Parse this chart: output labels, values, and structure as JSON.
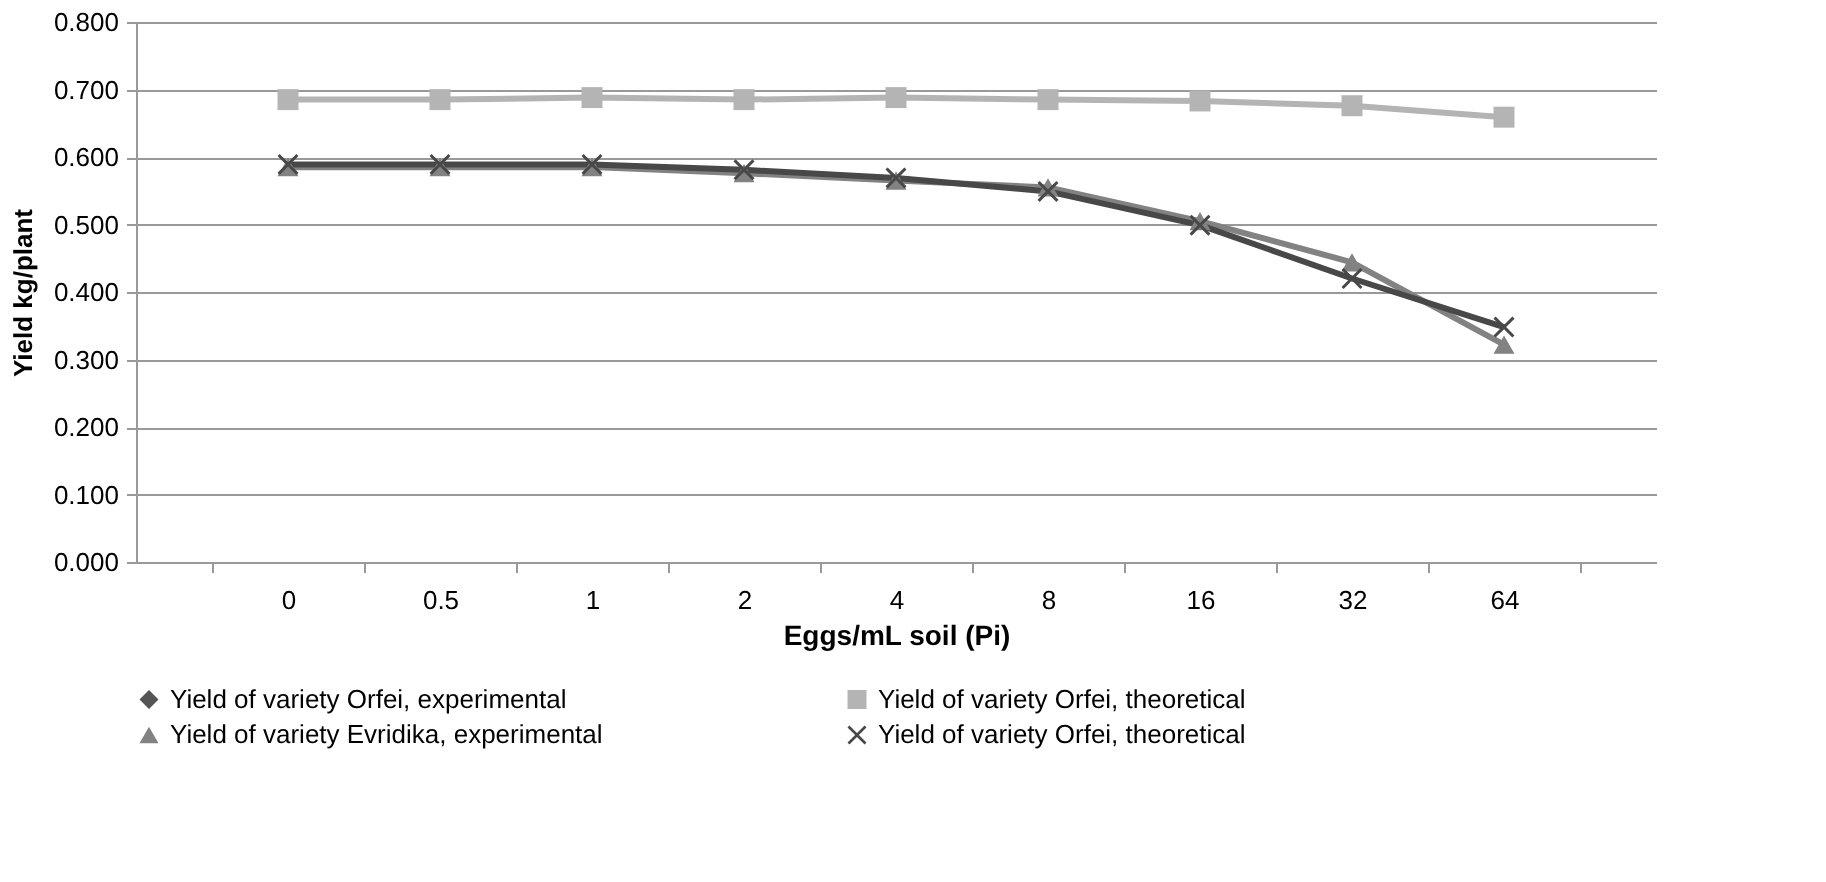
{
  "chart_data": {
    "type": "line",
    "xlabel": "Eggs/mL soil (Pi)",
    "ylabel": "Yield  kg/plant",
    "categories": [
      "0",
      "0.5",
      "1",
      "2",
      "4",
      "8",
      "16",
      "32",
      "64"
    ],
    "series": [
      {
        "name": "Yield of variety Orfei, experimental",
        "color": "#555555",
        "marker": "diamond",
        "values": [
          null,
          null,
          null,
          null,
          null,
          null,
          null,
          null,
          null
        ]
      },
      {
        "name": "Yield of variety Orfei, theoretical",
        "color": "#b4b4b4",
        "marker": "square",
        "values": [
          0.685,
          0.685,
          0.688,
          0.685,
          0.688,
          0.685,
          0.683,
          0.676,
          0.659
        ]
      },
      {
        "name": "Yield of variety Evridika, experimental",
        "color": "#828282",
        "marker": "triangle",
        "values": [
          0.585,
          0.585,
          0.585,
          0.576,
          0.565,
          0.555,
          0.505,
          0.444,
          0.322
        ]
      },
      {
        "name": "Yield of variety Orfei, theoretical",
        "color": "#484848",
        "marker": "cross",
        "values": [
          0.589,
          0.589,
          0.589,
          0.581,
          0.569,
          0.549,
          0.499,
          0.42,
          0.348
        ]
      }
    ],
    "ylim": [
      0,
      0.8
    ],
    "yticks": [
      {
        "value": 0,
        "label": "0.000"
      },
      {
        "value": 0.1,
        "label": "0.100"
      },
      {
        "value": 0.2,
        "label": "0.200"
      },
      {
        "value": 0.3,
        "label": "0.300"
      },
      {
        "value": 0.4,
        "label": "0.400"
      },
      {
        "value": 0.5,
        "label": "0.500"
      },
      {
        "value": 0.6,
        "label": "0.600"
      },
      {
        "value": 0.7,
        "label": "0.700"
      },
      {
        "value": 0.8,
        "label": "0.800"
      }
    ],
    "grid": "y",
    "legend": "bottom"
  }
}
